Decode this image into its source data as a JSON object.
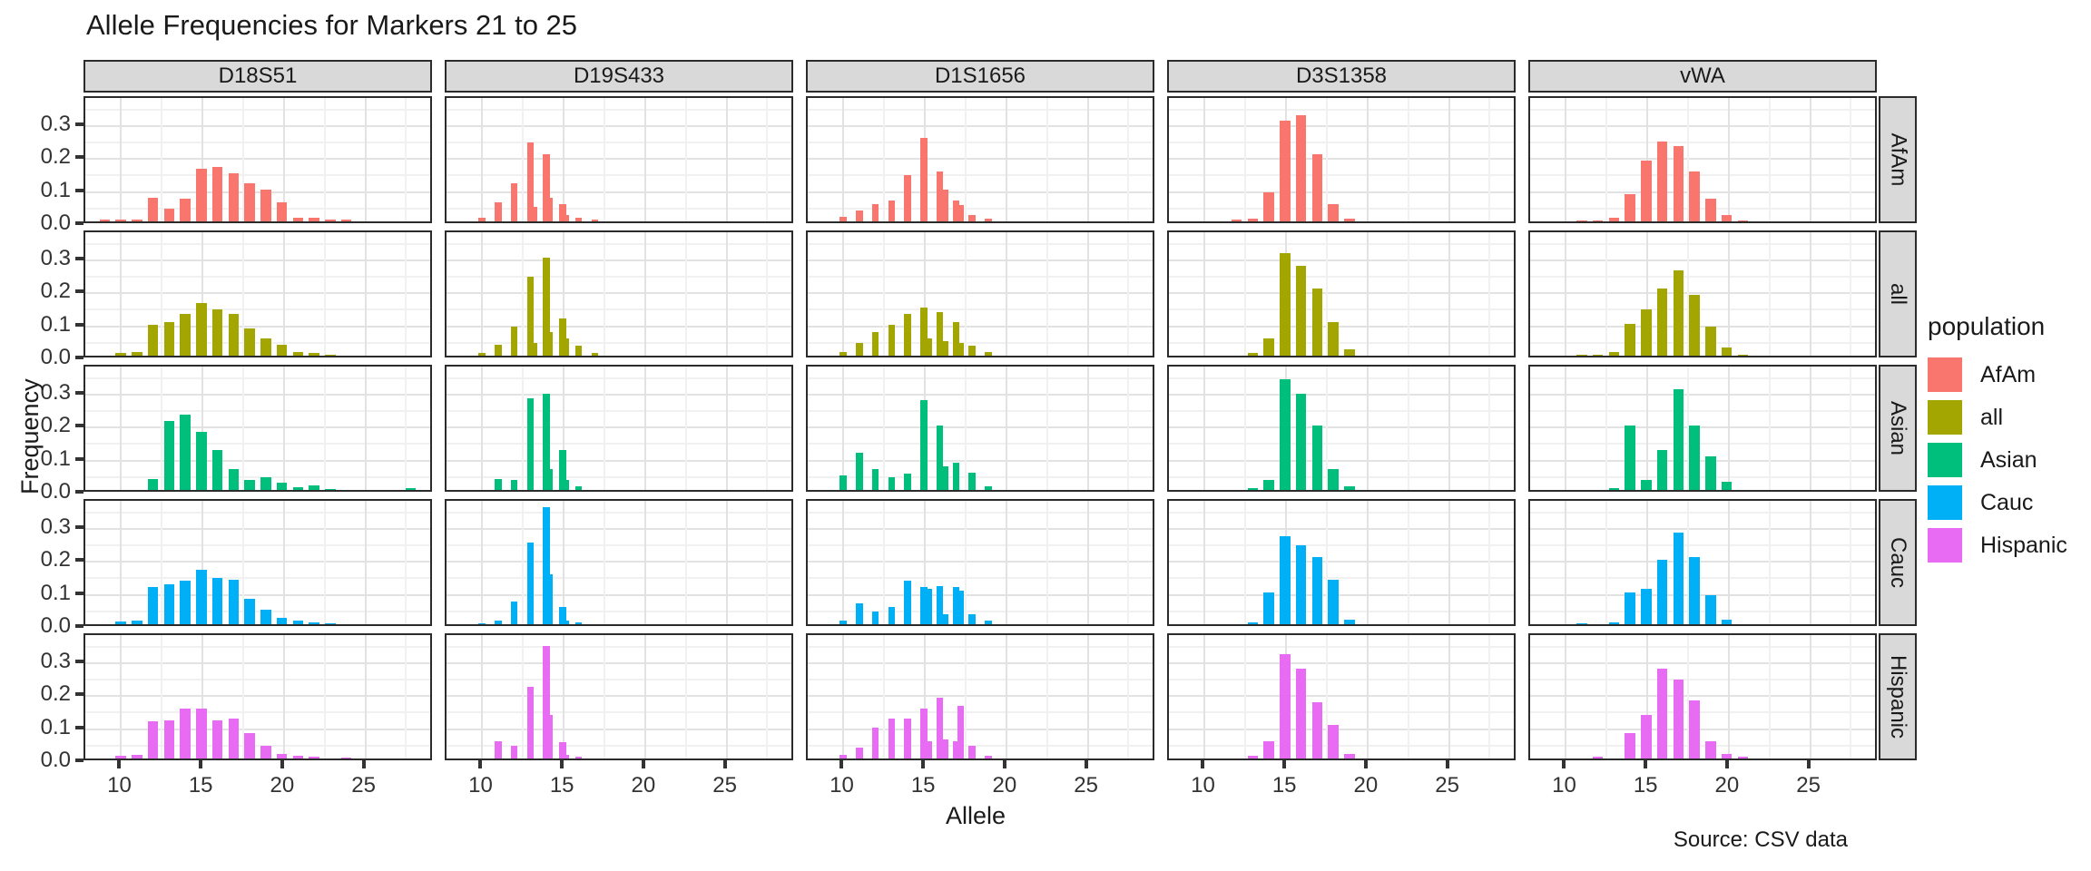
{
  "title": "Allele Frequencies for Markers 21 to 25",
  "caption": "Source: CSV data",
  "axes": {
    "x_label": "Allele",
    "y_label": "Frequency",
    "x_ticks": [
      "10",
      "15",
      "20",
      "25"
    ],
    "y_ticks": [
      "0.0",
      "0.1",
      "0.2",
      "0.3"
    ]
  },
  "legend": {
    "title": "population",
    "entries": [
      {
        "label": "AfAm",
        "color": "#F8766D"
      },
      {
        "label": "all",
        "color": "#A3A500"
      },
      {
        "label": "Asian",
        "color": "#00BF7D"
      },
      {
        "label": "Cauc",
        "color": "#00B0F6"
      },
      {
        "label": "Hispanic",
        "color": "#E76BF3"
      }
    ]
  },
  "chart_data": {
    "type": "bar",
    "title": "Allele Frequencies for Markers 21 to 25",
    "xlabel": "Allele",
    "ylabel": "Frequency",
    "facet_columns": [
      "D18S51",
      "D19S433",
      "D1S1656",
      "D3S1358",
      "vWA"
    ],
    "facet_rows": [
      "AfAm",
      "all",
      "Asian",
      "Cauc",
      "Hispanic"
    ],
    "x_tick_values": [
      10,
      15,
      20,
      25
    ],
    "y_tick_values": [
      0.0,
      0.1,
      0.2,
      0.3
    ],
    "xlim": [
      7.8,
      29.2
    ],
    "ylim": [
      0,
      0.385
    ],
    "grid": "on",
    "legend_position": "right",
    "series_colors": {
      "AfAm": "#F8766D",
      "all": "#A3A500",
      "Asian": "#00BF7D",
      "Cauc": "#00B0F6",
      "Hispanic": "#E76BF3"
    },
    "panels": {
      "D18S51": {
        "AfAm": [
          [
            9,
            0.005
          ],
          [
            10,
            0.006
          ],
          [
            11,
            0.006
          ],
          [
            12,
            0.075
          ],
          [
            13,
            0.04
          ],
          [
            14,
            0.07
          ],
          [
            15,
            0.165
          ],
          [
            16,
            0.17
          ],
          [
            17,
            0.15
          ],
          [
            18,
            0.12
          ],
          [
            19,
            0.1
          ],
          [
            20,
            0.06
          ],
          [
            21,
            0.012
          ],
          [
            22,
            0.01
          ],
          [
            23,
            0.006
          ],
          [
            24,
            0.005
          ]
        ],
        "all": [
          [
            10,
            0.008
          ],
          [
            11,
            0.012
          ],
          [
            12,
            0.095
          ],
          [
            13,
            0.105
          ],
          [
            14,
            0.13
          ],
          [
            15,
            0.165
          ],
          [
            16,
            0.145
          ],
          [
            17,
            0.13
          ],
          [
            18,
            0.085
          ],
          [
            19,
            0.055
          ],
          [
            20,
            0.035
          ],
          [
            21,
            0.012
          ],
          [
            22,
            0.008
          ],
          [
            23,
            0.004
          ]
        ],
        "Asian": [
          [
            12,
            0.035
          ],
          [
            13,
            0.215
          ],
          [
            14,
            0.235
          ],
          [
            15,
            0.18
          ],
          [
            16,
            0.125
          ],
          [
            17,
            0.065
          ],
          [
            18,
            0.03
          ],
          [
            19,
            0.04
          ],
          [
            20,
            0.022
          ],
          [
            21,
            0.008
          ],
          [
            22,
            0.015
          ],
          [
            23,
            0.004
          ],
          [
            28,
            0.005
          ]
        ],
        "Cauc": [
          [
            10,
            0.008
          ],
          [
            11,
            0.012
          ],
          [
            12,
            0.115
          ],
          [
            13,
            0.125
          ],
          [
            14,
            0.135
          ],
          [
            15,
            0.17
          ],
          [
            16,
            0.145
          ],
          [
            17,
            0.14
          ],
          [
            18,
            0.08
          ],
          [
            19,
            0.045
          ],
          [
            20,
            0.02
          ],
          [
            21,
            0.01
          ],
          [
            22,
            0.005
          ],
          [
            23,
            0.004
          ]
        ],
        "Hispanic": [
          [
            10,
            0.008
          ],
          [
            11,
            0.01
          ],
          [
            12,
            0.115
          ],
          [
            13,
            0.12
          ],
          [
            14,
            0.155
          ],
          [
            15,
            0.155
          ],
          [
            16,
            0.12
          ],
          [
            17,
            0.125
          ],
          [
            18,
            0.08
          ],
          [
            19,
            0.04
          ],
          [
            20,
            0.015
          ],
          [
            21,
            0.008
          ],
          [
            22,
            0.005
          ],
          [
            24,
            0.004
          ]
        ]
      },
      "D19S433": {
        "AfAm": [
          [
            10,
            0.01
          ],
          [
            11,
            0.06
          ],
          [
            12,
            0.12
          ],
          [
            13,
            0.245
          ],
          [
            13.2,
            0.045
          ],
          [
            14,
            0.21
          ],
          [
            14.2,
            0.075
          ],
          [
            15,
            0.055
          ],
          [
            15.2,
            0.02
          ],
          [
            16,
            0.012
          ],
          [
            17,
            0.005
          ]
        ],
        "all": [
          [
            10,
            0.008
          ],
          [
            11,
            0.035
          ],
          [
            12,
            0.09
          ],
          [
            13,
            0.245
          ],
          [
            13.2,
            0.04
          ],
          [
            14,
            0.305
          ],
          [
            14.2,
            0.075
          ],
          [
            15,
            0.115
          ],
          [
            15.2,
            0.055
          ],
          [
            16,
            0.03
          ],
          [
            17,
            0.008
          ]
        ],
        "Asian": [
          [
            11,
            0.035
          ],
          [
            12,
            0.03
          ],
          [
            13,
            0.285
          ],
          [
            14,
            0.3
          ],
          [
            14.2,
            0.065
          ],
          [
            15,
            0.125
          ],
          [
            15.2,
            0.03
          ],
          [
            16,
            0.01
          ]
        ],
        "Cauc": [
          [
            10,
            0.004
          ],
          [
            11,
            0.012
          ],
          [
            12,
            0.07
          ],
          [
            13,
            0.255
          ],
          [
            14,
            0.365
          ],
          [
            14.2,
            0.155
          ],
          [
            15,
            0.055
          ],
          [
            15.2,
            0.012
          ],
          [
            16,
            0.005
          ]
        ],
        "Hispanic": [
          [
            11,
            0.055
          ],
          [
            12,
            0.04
          ],
          [
            13,
            0.225
          ],
          [
            14,
            0.35
          ],
          [
            14.2,
            0.135
          ],
          [
            15,
            0.05
          ],
          [
            15.2,
            0.012
          ],
          [
            16,
            0.005
          ]
        ]
      },
      "D1S1656": {
        "AfAm": [
          [
            10,
            0.015
          ],
          [
            11,
            0.035
          ],
          [
            12,
            0.055
          ],
          [
            13,
            0.065
          ],
          [
            14,
            0.145
          ],
          [
            15,
            0.26
          ],
          [
            16,
            0.155
          ],
          [
            16.3,
            0.1
          ],
          [
            17,
            0.065
          ],
          [
            17.3,
            0.05
          ],
          [
            18,
            0.02
          ],
          [
            19,
            0.008
          ]
        ],
        "all": [
          [
            10,
            0.01
          ],
          [
            11,
            0.04
          ],
          [
            12,
            0.075
          ],
          [
            13,
            0.095
          ],
          [
            14,
            0.13
          ],
          [
            15,
            0.15
          ],
          [
            15.3,
            0.055
          ],
          [
            16,
            0.135
          ],
          [
            16.3,
            0.045
          ],
          [
            17,
            0.105
          ],
          [
            17.3,
            0.04
          ],
          [
            18,
            0.03
          ],
          [
            19,
            0.01
          ]
        ],
        "Asian": [
          [
            10,
            0.045
          ],
          [
            11,
            0.115
          ],
          [
            12,
            0.065
          ],
          [
            13,
            0.04
          ],
          [
            14,
            0.05
          ],
          [
            15,
            0.28
          ],
          [
            16,
            0.2
          ],
          [
            16.3,
            0.075
          ],
          [
            17,
            0.085
          ],
          [
            18,
            0.055
          ],
          [
            19,
            0.01
          ]
        ],
        "Cauc": [
          [
            10,
            0.01
          ],
          [
            11,
            0.065
          ],
          [
            12,
            0.04
          ],
          [
            13,
            0.055
          ],
          [
            14,
            0.135
          ],
          [
            15,
            0.115
          ],
          [
            15.3,
            0.11
          ],
          [
            16,
            0.12
          ],
          [
            16.3,
            0.03
          ],
          [
            17,
            0.115
          ],
          [
            17.3,
            0.105
          ],
          [
            18,
            0.03
          ],
          [
            19,
            0.01
          ]
        ],
        "Hispanic": [
          [
            10,
            0.01
          ],
          [
            11,
            0.035
          ],
          [
            12,
            0.095
          ],
          [
            13,
            0.125
          ],
          [
            14,
            0.125
          ],
          [
            15,
            0.155
          ],
          [
            15.3,
            0.055
          ],
          [
            16,
            0.19
          ],
          [
            16.3,
            0.06
          ],
          [
            17,
            0.055
          ],
          [
            17.3,
            0.165
          ],
          [
            18,
            0.04
          ],
          [
            19,
            0.008
          ]
        ]
      },
      "D3S1358": {
        "AfAm": [
          [
            12,
            0.006
          ],
          [
            13,
            0.008
          ],
          [
            14,
            0.09
          ],
          [
            15,
            0.315
          ],
          [
            16,
            0.33
          ],
          [
            17,
            0.21
          ],
          [
            18,
            0.055
          ],
          [
            19,
            0.008
          ]
        ],
        "all": [
          [
            13,
            0.008
          ],
          [
            14,
            0.055
          ],
          [
            15,
            0.32
          ],
          [
            16,
            0.28
          ],
          [
            17,
            0.21
          ],
          [
            18,
            0.105
          ],
          [
            19,
            0.02
          ]
        ],
        "Asian": [
          [
            13,
            0.005
          ],
          [
            14,
            0.03
          ],
          [
            15,
            0.345
          ],
          [
            16,
            0.3
          ],
          [
            17,
            0.2
          ],
          [
            18,
            0.065
          ],
          [
            19,
            0.01
          ]
        ],
        "Cauc": [
          [
            13,
            0.005
          ],
          [
            14,
            0.1
          ],
          [
            15,
            0.275
          ],
          [
            16,
            0.245
          ],
          [
            17,
            0.21
          ],
          [
            18,
            0.14
          ],
          [
            19,
            0.015
          ]
        ],
        "Hispanic": [
          [
            13,
            0.008
          ],
          [
            14,
            0.055
          ],
          [
            15,
            0.325
          ],
          [
            16,
            0.28
          ],
          [
            17,
            0.175
          ],
          [
            18,
            0.105
          ],
          [
            19,
            0.015
          ]
        ]
      },
      "vWA": {
        "AfAm": [
          [
            11,
            0.004
          ],
          [
            12,
            0.004
          ],
          [
            13,
            0.012
          ],
          [
            14,
            0.085
          ],
          [
            15,
            0.19
          ],
          [
            16,
            0.25
          ],
          [
            17,
            0.235
          ],
          [
            18,
            0.155
          ],
          [
            19,
            0.07
          ],
          [
            20,
            0.02
          ],
          [
            21,
            0.004
          ]
        ],
        "all": [
          [
            11,
            0.004
          ],
          [
            12,
            0.004
          ],
          [
            13,
            0.01
          ],
          [
            14,
            0.1
          ],
          [
            15,
            0.145
          ],
          [
            16,
            0.21
          ],
          [
            17,
            0.265
          ],
          [
            18,
            0.19
          ],
          [
            19,
            0.09
          ],
          [
            20,
            0.025
          ],
          [
            21,
            0.004
          ]
        ],
        "Asian": [
          [
            13,
            0.005
          ],
          [
            14,
            0.2
          ],
          [
            15,
            0.03
          ],
          [
            16,
            0.125
          ],
          [
            17,
            0.315
          ],
          [
            18,
            0.2
          ],
          [
            19,
            0.105
          ],
          [
            20,
            0.025
          ]
        ],
        "Cauc": [
          [
            11,
            0.004
          ],
          [
            13,
            0.005
          ],
          [
            14,
            0.1
          ],
          [
            15,
            0.11
          ],
          [
            16,
            0.2
          ],
          [
            17,
            0.285
          ],
          [
            18,
            0.21
          ],
          [
            19,
            0.09
          ],
          [
            20,
            0.015
          ]
        ],
        "Hispanic": [
          [
            12,
            0.005
          ],
          [
            14,
            0.08
          ],
          [
            15,
            0.135
          ],
          [
            16,
            0.28
          ],
          [
            17,
            0.245
          ],
          [
            18,
            0.18
          ],
          [
            19,
            0.055
          ],
          [
            20,
            0.015
          ],
          [
            21,
            0.005
          ]
        ]
      }
    }
  }
}
